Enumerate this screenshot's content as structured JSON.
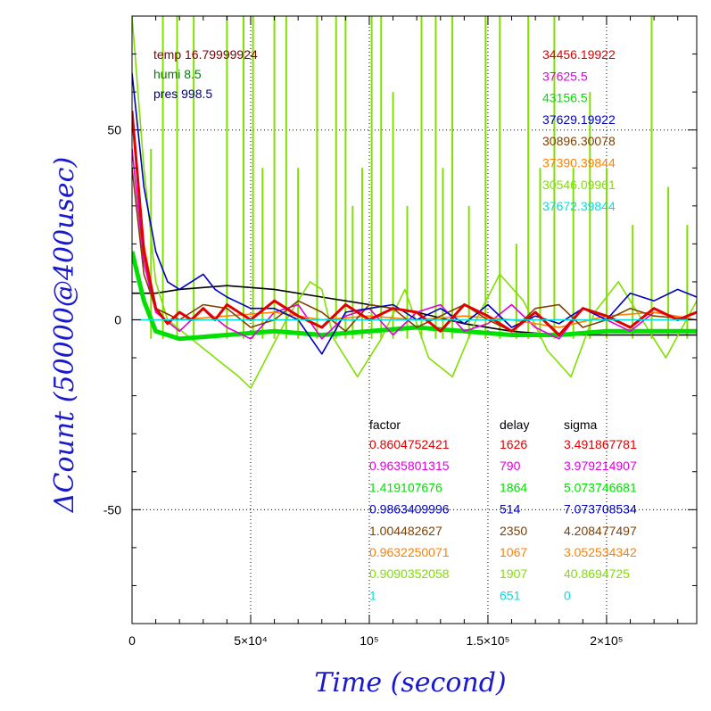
{
  "chart_data": {
    "type": "line",
    "xlabel": "Time (second)",
    "ylabel": "ΔCount (50000@400usec)",
    "xlim": [
      0,
      238000
    ],
    "ylim": [
      -80,
      80
    ],
    "grid": true,
    "x_ticks": [
      {
        "value": 0,
        "label": "0"
      },
      {
        "value": 50000,
        "label": "5×10⁴"
      },
      {
        "value": 100000,
        "label": "10⁵"
      },
      {
        "value": 150000,
        "label": "1.5×10⁵"
      },
      {
        "value": 200000,
        "label": "2×10⁵"
      }
    ],
    "y_ticks": [
      {
        "value": -50,
        "label": "-50"
      },
      {
        "value": 0,
        "label": "0"
      },
      {
        "value": 50,
        "label": "50"
      }
    ],
    "env": {
      "temp": "temp 16.79999924",
      "humi": "humi 8.5",
      "pres": "pres 998.5"
    },
    "table_headers": {
      "factor": "factor",
      "delay": "delay",
      "sigma": "sigma"
    },
    "series": [
      {
        "mean": "34456.19922",
        "factor": "0.8604752421",
        "delay": "1626",
        "sigma": "3.491867781",
        "color": "#e00000"
      },
      {
        "mean": "37625.5",
        "factor": "0.9635801315",
        "delay": "790",
        "sigma": "3.979214907",
        "color": "#e000e0"
      },
      {
        "mean": "43156.5",
        "factor": "1.419107676",
        "delay": "1864",
        "sigma": "5.073746681",
        "color": "#00e000"
      },
      {
        "mean": "37629.19922",
        "factor": "0.9863409996",
        "delay": "514",
        "sigma": "7.073708534",
        "color": "#0000c0"
      },
      {
        "mean": "30896.30078",
        "factor": "1.004482627",
        "delay": "2350",
        "sigma": "4.208477497",
        "color": "#804000"
      },
      {
        "mean": "37390.39844",
        "factor": "0.9632250071",
        "delay": "1067",
        "sigma": "3.052534342",
        "color": "#ff8000"
      },
      {
        "mean": "30546.09961",
        "factor": "0.9090352058",
        "delay": "1907",
        "sigma": "40.8694725",
        "color": "#80e000"
      },
      {
        "mean": "37672.39844",
        "factor": "1",
        "delay": "651",
        "sigma": "0",
        "color": "#00e0e0"
      }
    ],
    "curves": [
      {
        "color": "#000000",
        "x": [
          0,
          10000,
          20000,
          40000,
          60000,
          80000,
          100000,
          120000,
          140000,
          160000,
          180000,
          200000,
          220000,
          238000
        ],
        "y": [
          7,
          7,
          8,
          9,
          8,
          6,
          4,
          2,
          -1,
          -3,
          -4,
          -4,
          -4,
          -4
        ]
      },
      {
        "color": "#80e000",
        "x": [
          0,
          5000,
          10000,
          15000,
          25000,
          35000,
          45000,
          50000,
          55000,
          65000,
          75000,
          80000,
          85000,
          95000,
          105000,
          115000,
          125000,
          135000,
          145000,
          155000,
          165000,
          175000,
          185000,
          195000,
          205000,
          215000,
          225000,
          238000
        ],
        "y": [
          80,
          40,
          10,
          0,
          -5,
          -10,
          -15,
          -18,
          -12,
          0,
          10,
          8,
          -5,
          -15,
          -5,
          8,
          -10,
          -15,
          0,
          12,
          5,
          -8,
          -15,
          2,
          10,
          0,
          -10,
          5
        ]
      },
      {
        "color": "#00e000",
        "x": [
          0,
          5000,
          10000,
          20000,
          40000,
          60000,
          80000,
          100000,
          120000,
          140000,
          160000,
          180000,
          200000,
          220000,
          238000
        ],
        "y": [
          18,
          5,
          -3,
          -5,
          -4,
          -3,
          -4,
          -3,
          -2,
          -3,
          -4,
          -4,
          -3,
          -3,
          -3
        ]
      },
      {
        "color": "#e000e0",
        "x": [
          0,
          5000,
          10000,
          20000,
          30000,
          40000,
          50000,
          60000,
          70000,
          80000,
          90000,
          100000,
          110000,
          120000,
          130000,
          140000,
          150000,
          160000,
          170000,
          180000,
          190000,
          200000,
          210000,
          220000,
          238000
        ],
        "y": [
          45,
          15,
          2,
          -3,
          3,
          -2,
          -5,
          2,
          4,
          -5,
          1,
          3,
          -4,
          2,
          4,
          -3,
          -1,
          4,
          -2,
          -5,
          3,
          0,
          -3,
          2,
          0
        ]
      },
      {
        "color": "#ff8000",
        "x": [
          0,
          5000,
          10000,
          20000,
          40000,
          60000,
          80000,
          100000,
          120000,
          140000,
          160000,
          180000,
          200000,
          220000,
          238000
        ],
        "y": [
          55,
          20,
          3,
          0,
          1,
          2,
          0,
          1,
          0,
          1,
          0,
          -2,
          1,
          2,
          0
        ]
      },
      {
        "color": "#804000",
        "x": [
          0,
          5000,
          10000,
          20000,
          30000,
          40000,
          50000,
          60000,
          70000,
          80000,
          90000,
          100000,
          110000,
          120000,
          130000,
          140000,
          150000,
          160000,
          170000,
          180000,
          190000,
          200000,
          210000,
          220000,
          238000
        ],
        "y": [
          40,
          12,
          3,
          0,
          4,
          3,
          -2,
          0,
          5,
          2,
          -3,
          4,
          3,
          -2,
          1,
          4,
          0,
          -3,
          3,
          4,
          -2,
          0,
          3,
          1,
          0
        ]
      },
      {
        "color": "#0000c0",
        "x": [
          0,
          5000,
          10000,
          15000,
          20000,
          25000,
          30000,
          35000,
          40000,
          50000,
          60000,
          70000,
          80000,
          90000,
          100000,
          110000,
          120000,
          130000,
          140000,
          150000,
          160000,
          170000,
          180000,
          190000,
          200000,
          210000,
          220000,
          230000,
          238000
        ],
        "y": [
          65,
          35,
          18,
          10,
          8,
          10,
          12,
          8,
          6,
          3,
          3,
          0,
          -9,
          2,
          3,
          4,
          0,
          3,
          -1,
          4,
          -2,
          1,
          -1,
          3,
          0,
          7,
          5,
          8,
          6
        ]
      },
      {
        "color": "#e00000",
        "x": [
          0,
          5000,
          10000,
          15000,
          20000,
          25000,
          30000,
          35000,
          40000,
          50000,
          60000,
          70000,
          80000,
          90000,
          100000,
          110000,
          120000,
          130000,
          140000,
          150000,
          160000,
          170000,
          180000,
          190000,
          200000,
          210000,
          220000,
          230000,
          238000
        ],
        "y": [
          55,
          18,
          3,
          -1,
          2,
          0,
          3,
          0,
          4,
          0,
          5,
          1,
          -2,
          4,
          0,
          3,
          2,
          -3,
          4,
          1,
          -3,
          2,
          -4,
          3,
          1,
          -2,
          3,
          0,
          2
        ]
      },
      {
        "color": "#00e0e0",
        "x": [
          0,
          238000
        ],
        "y": [
          0,
          0
        ]
      }
    ],
    "spikes": {
      "color": "#80e000",
      "x": [
        8000,
        13000,
        19000,
        26000,
        40000,
        47000,
        51000,
        55000,
        60000,
        65000,
        70000,
        78000,
        86000,
        90000,
        93000,
        97000,
        101000,
        105000,
        110000,
        116000,
        122000,
        128000,
        131000,
        135000,
        142000,
        149000,
        155000,
        162000,
        167000,
        172000,
        178000,
        186000,
        193000,
        200000,
        211000,
        219000,
        226000,
        234000
      ],
      "y": [
        45,
        80,
        80,
        80,
        80,
        80,
        80,
        40,
        80,
        80,
        40,
        80,
        80,
        80,
        30,
        40,
        80,
        80,
        60,
        30,
        80,
        80,
        40,
        80,
        30,
        80,
        80,
        20,
        80,
        40,
        80,
        40,
        60,
        40,
        25,
        80,
        35,
        25
      ]
    }
  }
}
